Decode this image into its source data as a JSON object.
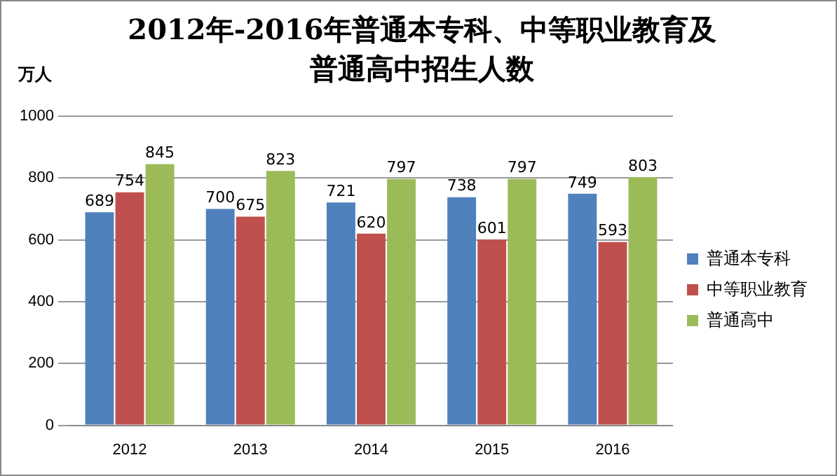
{
  "chart_data": {
    "type": "bar",
    "title": "2012年-2016年普通本专科、中等职业教育及普通高中招生人数",
    "ylabel": "万人",
    "categories": [
      "2012",
      "2013",
      "2014",
      "2015",
      "2016"
    ],
    "series": [
      {
        "name": "普通本专科",
        "color": "#4f81bd",
        "values": [
          689,
          700,
          721,
          738,
          749
        ]
      },
      {
        "name": "中等职业教育",
        "color": "#c0504d",
        "values": [
          754,
          675,
          620,
          601,
          593
        ]
      },
      {
        "name": "普通高中",
        "color": "#9bbb59",
        "values": [
          845,
          823,
          797,
          797,
          803
        ]
      }
    ],
    "ylim": [
      0,
      1000
    ],
    "yticks": [
      0,
      200,
      400,
      600,
      800,
      1000
    ],
    "grid": "y",
    "legend": "right",
    "data_labels": true
  }
}
